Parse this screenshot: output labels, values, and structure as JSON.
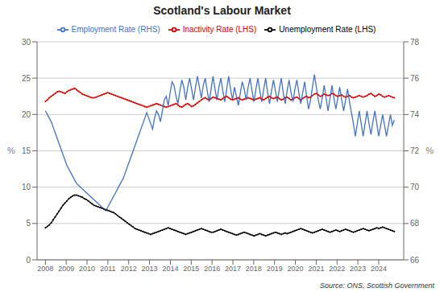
{
  "chart_data": {
    "type": "line",
    "title": "Scotland's Labour Market",
    "y_label": "%",
    "y2_label": "%",
    "annotations": [
      "Source: ONS, Scottish Government"
    ],
    "x": [
      2008,
      2008.0936,
      2008.1872,
      2008.2807,
      2008.3743,
      2008.4679,
      2008.5615,
      2008.655,
      2008.7486,
      2008.8422,
      2008.9358,
      2009.0293,
      2009.1229,
      2009.2165,
      2009.3101,
      2009.4036,
      2009.4972,
      2009.5908,
      2009.6844,
      2009.7779,
      2009.8715,
      2009.9651,
      2010.0587,
      2010.1522,
      2010.2458,
      2010.3394,
      2010.433,
      2010.5265,
      2010.6201,
      2010.7137,
      2010.8073,
      2010.9008,
      2010.9944,
      2011.088,
      2011.1816,
      2011.2751,
      2011.3687,
      2011.4623,
      2011.5559,
      2011.6494,
      2011.743,
      2011.8366,
      2011.9302,
      2012.0237,
      2012.1173,
      2012.2109,
      2012.3045,
      2012.398,
      2012.4916,
      2012.5852,
      2012.6788,
      2012.7723,
      2012.8659,
      2012.9595,
      2013.0531,
      2013.1466,
      2013.2402,
      2013.3338,
      2013.4274,
      2013.5209,
      2013.6145,
      2013.7081,
      2013.8017,
      2013.8953,
      2013.9888,
      2014.0824,
      2014.176,
      2014.2696,
      2014.3631,
      2014.4567,
      2014.5503,
      2014.6439,
      2014.7374,
      2014.831,
      2014.9246,
      2015.0182,
      2015.1117,
      2015.2053,
      2015.2989,
      2015.3925,
      2015.486,
      2015.5796,
      2015.6732,
      2015.7668,
      2015.8603,
      2015.9539,
      2016.0475,
      2016.1411,
      2016.2346,
      2016.3282,
      2016.4218,
      2016.5154,
      2016.6089,
      2016.7025,
      2016.7961,
      2016.8897,
      2016.9832,
      2017.0768,
      2017.1704,
      2017.264,
      2017.3575,
      2017.4511,
      2017.5447,
      2017.6383,
      2017.7318,
      2017.8254,
      2017.919,
      2018.0126,
      2018.1061,
      2018.1997,
      2018.2933,
      2018.3869,
      2018.4804,
      2018.574,
      2018.6676,
      2018.7612,
      2018.8547,
      2018.9483,
      2019.0419,
      2019.1355,
      2019.2291,
      2019.3226,
      2019.4162,
      2019.5098,
      2019.6034,
      2019.6969,
      2019.7905,
      2019.8841,
      2019.9777,
      2020.0712,
      2020.1648,
      2020.2584,
      2020.352,
      2020.4455,
      2020.5391,
      2020.6327,
      2020.7263,
      2020.8198,
      2020.9134,
      2021.007,
      2021.1006,
      2021.1941,
      2021.2877,
      2021.3813,
      2021.4749,
      2021.5684,
      2021.662,
      2021.7556,
      2021.8492,
      2021.9427,
      2022.0363,
      2022.1299,
      2022.2235,
      2022.317,
      2022.4106,
      2022.5042,
      2022.5978,
      2022.6913,
      2022.7849,
      2022.8785,
      2022.9721,
      2023.0656,
      2023.1592,
      2023.2528,
      2023.3464,
      2023.4399,
      2023.5335,
      2023.6271,
      2023.7207,
      2023.8142,
      2023.9078,
      2024.0014,
      2024.095,
      2024.1885,
      2024.2821,
      2024.3757,
      2024.4693,
      2024.5628,
      2024.6564,
      2024.75
    ],
    "xlim": [
      2007.6,
      2025.2
    ],
    "xticks": [
      2008,
      2009,
      2010,
      2011,
      2012,
      2013,
      2014,
      2015,
      2016,
      2017,
      2018,
      2019,
      2020,
      2021,
      2022,
      2023,
      2024
    ],
    "ylim": [
      0,
      30
    ],
    "yticks": [
      0,
      5,
      10,
      15,
      20,
      25,
      30
    ],
    "y2lim": [
      66,
      78
    ],
    "y2ticks": [
      66,
      68,
      70,
      72,
      74,
      76,
      78
    ],
    "grid": true,
    "legend": "top",
    "series": [
      {
        "name": "Unemployment Rate (LHS)",
        "color": "#000000",
        "marker": "o",
        "values": [
          4.4,
          4.6,
          4.8,
          5.1,
          5.5,
          5.9,
          6.3,
          6.7,
          7.1,
          7.5,
          7.8,
          8.1,
          8.4,
          8.6,
          8.8,
          8.9,
          8.9,
          8.8,
          8.7,
          8.6,
          8.4,
          8.3,
          8.1,
          7.9,
          7.7,
          7.5,
          7.4,
          7.3,
          7.2,
          7.1,
          7.0,
          6.9,
          6.8,
          6.7,
          6.6,
          6.5,
          6.3,
          6.1,
          5.9,
          5.7,
          5.5,
          5.3,
          5.1,
          4.9,
          4.7,
          4.5,
          4.3,
          4.2,
          4.1,
          4.0,
          3.9,
          3.8,
          3.7,
          3.6,
          3.5,
          3.6,
          3.7,
          3.8,
          3.9,
          4.0,
          4.1,
          4.2,
          4.3,
          4.4,
          4.3,
          4.2,
          4.1,
          4.0,
          3.9,
          3.8,
          3.7,
          3.6,
          3.5,
          3.6,
          3.7,
          3.8,
          3.9,
          4.0,
          4.1,
          4.2,
          4.3,
          4.2,
          4.1,
          4.0,
          3.9,
          3.8,
          3.8,
          3.9,
          4.0,
          4.1,
          4.2,
          4.1,
          4.0,
          3.9,
          3.8,
          3.7,
          3.6,
          3.5,
          3.4,
          3.5,
          3.6,
          3.7,
          3.8,
          3.7,
          3.6,
          3.5,
          3.4,
          3.3,
          3.4,
          3.5,
          3.6,
          3.5,
          3.4,
          3.3,
          3.4,
          3.5,
          3.6,
          3.7,
          3.8,
          3.7,
          3.6,
          3.5,
          3.6,
          3.7,
          3.6,
          3.7,
          3.8,
          3.9,
          4.0,
          4.1,
          4.2,
          4.3,
          4.2,
          4.1,
          4.0,
          3.9,
          3.8,
          3.7,
          3.8,
          3.9,
          4.0,
          4.1,
          4.2,
          4.1,
          4.0,
          3.9,
          3.8,
          3.9,
          4.0,
          4.1,
          4.0,
          3.9,
          4.0,
          4.1,
          4.2,
          4.1,
          4.0,
          3.9,
          3.8,
          3.9,
          4.0,
          4.1,
          4.2,
          4.3,
          4.2,
          4.1,
          4.0,
          4.1,
          4.2,
          4.3,
          4.4,
          4.3,
          4.4,
          4.5,
          4.4,
          4.3,
          4.2,
          4.1,
          4.0,
          3.9
        ]
      },
      {
        "name": "Inactivity Rate (LHS)",
        "color": "#dd0000",
        "marker": "o",
        "values": [
          21.8,
          22.0,
          22.3,
          22.5,
          22.7,
          22.9,
          23.1,
          23.2,
          23.1,
          23.0,
          22.9,
          23.1,
          23.3,
          23.4,
          23.5,
          23.6,
          23.4,
          23.2,
          23.0,
          22.8,
          22.7,
          22.6,
          22.5,
          22.4,
          22.3,
          22.3,
          22.4,
          22.5,
          22.6,
          22.7,
          22.8,
          22.9,
          23.0,
          22.9,
          22.8,
          22.7,
          22.6,
          22.5,
          22.4,
          22.3,
          22.2,
          22.1,
          22.0,
          21.9,
          21.8,
          21.7,
          21.6,
          21.5,
          21.4,
          21.3,
          21.2,
          21.1,
          21.0,
          21.1,
          21.2,
          21.3,
          21.4,
          21.5,
          21.4,
          21.3,
          21.2,
          21.1,
          21.0,
          21.1,
          21.2,
          21.3,
          21.4,
          21.5,
          21.3,
          21.1,
          21.0,
          21.2,
          21.4,
          21.5,
          21.3,
          21.1,
          21.2,
          21.4,
          21.6,
          21.8,
          22.0,
          22.2,
          22.3,
          22.1,
          22.0,
          22.2,
          22.4,
          22.3,
          22.2,
          22.1,
          22.0,
          22.2,
          22.4,
          22.5,
          22.3,
          22.1,
          22.0,
          22.1,
          22.2,
          22.3,
          22.1,
          22.0,
          22.1,
          22.2,
          22.3,
          22.2,
          22.1,
          22.0,
          22.1,
          22.2,
          22.3,
          22.1,
          22.0,
          22.2,
          22.4,
          22.5,
          22.3,
          22.2,
          22.3,
          22.4,
          22.2,
          22.0,
          22.1,
          22.3,
          22.4,
          22.2,
          22.0,
          22.1,
          22.3,
          22.4,
          22.2,
          22.0,
          22.2,
          22.4,
          22.5,
          22.3,
          22.4,
          22.6,
          22.8,
          22.9,
          22.7,
          22.5,
          22.6,
          22.8,
          22.7,
          22.6,
          22.7,
          22.9,
          22.8,
          22.6,
          22.5,
          22.6,
          22.7,
          22.5,
          22.4,
          22.5,
          22.6,
          22.4,
          22.3,
          22.4,
          22.5,
          22.6,
          22.5,
          22.4,
          22.5,
          22.6,
          22.8,
          22.9,
          22.7,
          22.5,
          22.6,
          22.8,
          22.7,
          22.5,
          22.4,
          22.5,
          22.6,
          22.5,
          22.4,
          22.3
        ]
      },
      {
        "name": "Employment Rate (RHS)",
        "color": "#4472c4",
        "axis": "y2",
        "values": [
          74.2,
          74.0,
          73.8,
          73.6,
          73.3,
          73.0,
          72.7,
          72.4,
          72.1,
          71.8,
          71.5,
          71.2,
          71.0,
          70.8,
          70.6,
          70.4,
          70.2,
          70.1,
          70.0,
          69.9,
          69.8,
          69.7,
          69.6,
          69.5,
          69.4,
          69.3,
          69.2,
          69.1,
          69.0,
          68.9,
          68.8,
          68.7,
          68.9,
          69.1,
          69.3,
          69.5,
          69.7,
          69.9,
          70.1,
          70.3,
          70.5,
          70.8,
          71.1,
          71.4,
          71.7,
          72.0,
          72.3,
          72.6,
          72.9,
          73.2,
          73.5,
          73.8,
          74.1,
          73.8,
          73.5,
          73.2,
          73.8,
          74.2,
          74.0,
          73.6,
          74.2,
          74.8,
          75.0,
          74.5,
          75.2,
          75.8,
          75.6,
          75.0,
          74.6,
          75.3,
          75.9,
          75.5,
          74.8,
          75.5,
          76.0,
          75.4,
          74.8,
          75.5,
          76.1,
          75.5,
          74.9,
          75.6,
          76.0,
          75.3,
          74.7,
          75.4,
          76.1,
          75.4,
          74.8,
          75.5,
          76.0,
          75.3,
          74.7,
          75.4,
          76.1,
          75.4,
          74.8,
          75.5,
          75.0,
          74.5,
          75.2,
          75.8,
          75.4,
          74.8,
          75.5,
          76.0,
          75.3,
          74.7,
          75.4,
          76.0,
          75.3,
          74.7,
          75.4,
          76.0,
          75.2,
          74.6,
          75.3,
          75.9,
          75.3,
          74.7,
          75.4,
          76.0,
          75.2,
          74.6,
          75.3,
          75.9,
          75.2,
          74.7,
          75.4,
          75.9,
          75.2,
          74.6,
          75.2,
          75.8,
          75.0,
          74.3,
          74.8,
          75.5,
          76.2,
          75.5,
          74.8,
          74.3,
          74.9,
          75.6,
          74.9,
          74.2,
          74.9,
          75.6,
          74.9,
          74.3,
          74.9,
          75.5,
          74.8,
          74.2,
          74.8,
          75.4,
          74.7,
          74.1,
          73.5,
          72.8,
          73.5,
          74.2,
          73.5,
          72.8,
          73.5,
          74.2,
          73.5,
          72.9,
          73.6,
          74.2,
          73.5,
          72.8,
          73.4,
          74.0,
          73.4,
          72.8,
          73.4,
          74.0,
          73.4,
          73.7
        ]
      }
    ]
  }
}
